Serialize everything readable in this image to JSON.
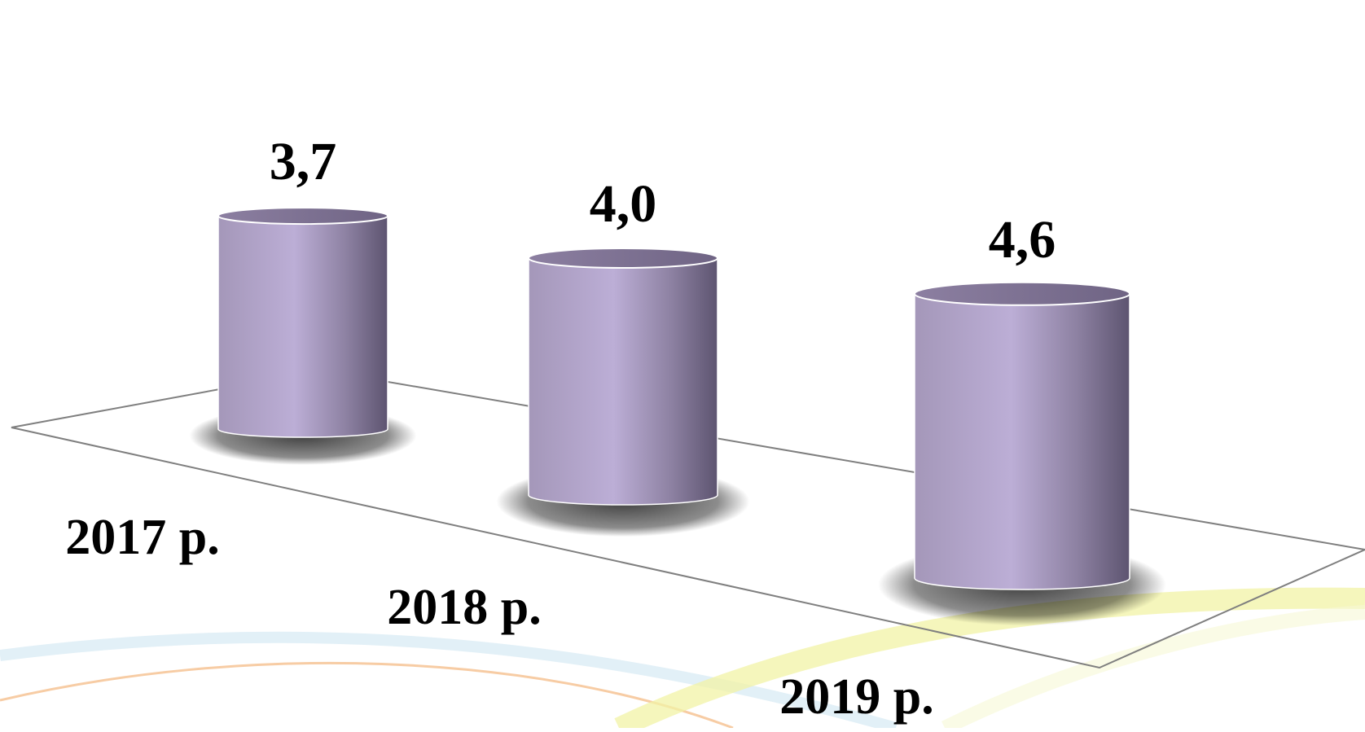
{
  "chart_data": {
    "type": "bar",
    "style": "3d-cylinder",
    "categories": [
      "2017 р.",
      "2018 р.",
      "2019 р."
    ],
    "values": [
      3.7,
      4.0,
      4.6
    ],
    "value_labels": [
      "3,7",
      "4,0",
      "4,6"
    ],
    "title": "",
    "xlabel": "",
    "ylabel": "",
    "grid": false,
    "legend": "none",
    "colors": {
      "bar": "#b6a6ce",
      "bar_dark": "#5d5470",
      "floor_line": "#7f7f7f"
    }
  }
}
